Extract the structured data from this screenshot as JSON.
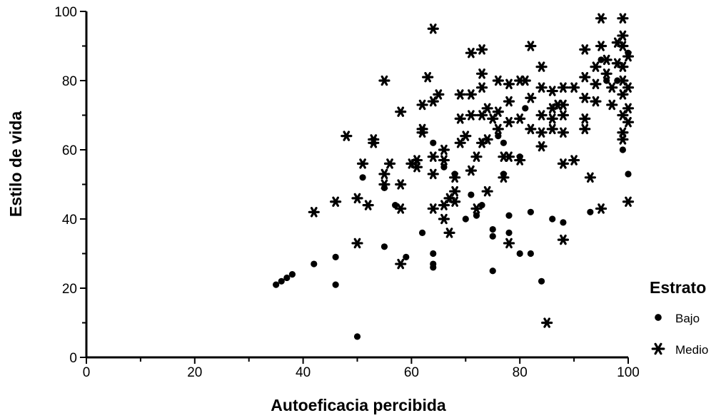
{
  "chart_data": {
    "type": "scatter",
    "title": "",
    "xlabel": "Autoeficacia percibida",
    "ylabel": "Estilo de vida",
    "xlim": [
      0,
      100
    ],
    "ylim": [
      0,
      100
    ],
    "xticks": [
      "0",
      "20",
      "40",
      "60",
      "80",
      "100"
    ],
    "yticks": [
      "0",
      "20",
      "40",
      "60",
      "80",
      "100"
    ],
    "grid": false,
    "legend": {
      "title": "Estrato",
      "placement": "right"
    },
    "colors": {
      "marker": "#000000",
      "axis": "#000000",
      "background": "#ffffff"
    },
    "series": [
      {
        "name": "Bajo",
        "marker": "circle",
        "points": [
          [
            35,
            21
          ],
          [
            36,
            22
          ],
          [
            37,
            23
          ],
          [
            38,
            24
          ],
          [
            42,
            27
          ],
          [
            46,
            29
          ],
          [
            46,
            21
          ],
          [
            50,
            6
          ],
          [
            51,
            52
          ],
          [
            55,
            32
          ],
          [
            55,
            49
          ],
          [
            57,
            44
          ],
          [
            59,
            29
          ],
          [
            62,
            36
          ],
          [
            64,
            30
          ],
          [
            64,
            27
          ],
          [
            64,
            26
          ],
          [
            64,
            62
          ],
          [
            66,
            55
          ],
          [
            68,
            53
          ],
          [
            70,
            40
          ],
          [
            71,
            47
          ],
          [
            72,
            41
          ],
          [
            73,
            44
          ],
          [
            75,
            37
          ],
          [
            75,
            35
          ],
          [
            75,
            25
          ],
          [
            76,
            64
          ],
          [
            77,
            62
          ],
          [
            77,
            53
          ],
          [
            78,
            41
          ],
          [
            78,
            36
          ],
          [
            80,
            30
          ],
          [
            80,
            58
          ],
          [
            81,
            72
          ],
          [
            82,
            30
          ],
          [
            82,
            42
          ],
          [
            84,
            22
          ],
          [
            86,
            40
          ],
          [
            88,
            39
          ],
          [
            93,
            42
          ],
          [
            95,
            86
          ],
          [
            96,
            80
          ],
          [
            98,
            80
          ],
          [
            99,
            60
          ],
          [
            100,
            53
          ],
          [
            100,
            88
          ]
        ]
      },
      {
        "name": "Medio",
        "marker": "asterisk",
        "points": [
          [
            42,
            42
          ],
          [
            46,
            45
          ],
          [
            48,
            64
          ],
          [
            50,
            33
          ],
          [
            50,
            46
          ],
          [
            51,
            56
          ],
          [
            52,
            44
          ],
          [
            53,
            62
          ],
          [
            53,
            63
          ],
          [
            55,
            80
          ],
          [
            55,
            53
          ],
          [
            55,
            50
          ],
          [
            56,
            56
          ],
          [
            58,
            71
          ],
          [
            58,
            50
          ],
          [
            58,
            43
          ],
          [
            58,
            27
          ],
          [
            60,
            56
          ],
          [
            61,
            57
          ],
          [
            61,
            55
          ],
          [
            62,
            65
          ],
          [
            62,
            66
          ],
          [
            62,
            73
          ],
          [
            63,
            81
          ],
          [
            64,
            74
          ],
          [
            64,
            95
          ],
          [
            64,
            58
          ],
          [
            64,
            53
          ],
          [
            64,
            43
          ],
          [
            65,
            76
          ],
          [
            66,
            57
          ],
          [
            66,
            60
          ],
          [
            66,
            44
          ],
          [
            66,
            40
          ],
          [
            67,
            46
          ],
          [
            67,
            36
          ],
          [
            68,
            45
          ],
          [
            68,
            52
          ],
          [
            68,
            48
          ],
          [
            69,
            62
          ],
          [
            69,
            69
          ],
          [
            69,
            76
          ],
          [
            70,
            64
          ],
          [
            71,
            88
          ],
          [
            71,
            76
          ],
          [
            71,
            70
          ],
          [
            71,
            54
          ],
          [
            72,
            58
          ],
          [
            72,
            43
          ],
          [
            73,
            89
          ],
          [
            73,
            82
          ],
          [
            73,
            78
          ],
          [
            73,
            70
          ],
          [
            73,
            62
          ],
          [
            74,
            72
          ],
          [
            74,
            63
          ],
          [
            74,
            48
          ],
          [
            75,
            69
          ],
          [
            76,
            71
          ],
          [
            76,
            80
          ],
          [
            76,
            66
          ],
          [
            77,
            58
          ],
          [
            77,
            52
          ],
          [
            78,
            79
          ],
          [
            78,
            74
          ],
          [
            78,
            68
          ],
          [
            78,
            58
          ],
          [
            78,
            33
          ],
          [
            80,
            80
          ],
          [
            80,
            69
          ],
          [
            80,
            57
          ],
          [
            81,
            80
          ],
          [
            82,
            90
          ],
          [
            82,
            75
          ],
          [
            82,
            66
          ],
          [
            84,
            84
          ],
          [
            84,
            78
          ],
          [
            84,
            70
          ],
          [
            84,
            65
          ],
          [
            84,
            61
          ],
          [
            85,
            10
          ],
          [
            86,
            77
          ],
          [
            86,
            72
          ],
          [
            86,
            69
          ],
          [
            86,
            66
          ],
          [
            87,
            73
          ],
          [
            88,
            78
          ],
          [
            88,
            73
          ],
          [
            88,
            70
          ],
          [
            88,
            65
          ],
          [
            88,
            56
          ],
          [
            88,
            34
          ],
          [
            90,
            78
          ],
          [
            90,
            57
          ],
          [
            92,
            89
          ],
          [
            92,
            81
          ],
          [
            92,
            75
          ],
          [
            92,
            69
          ],
          [
            92,
            66
          ],
          [
            93,
            52
          ],
          [
            94,
            84
          ],
          [
            94,
            79
          ],
          [
            94,
            74
          ],
          [
            95,
            98
          ],
          [
            95,
            90
          ],
          [
            95,
            43
          ],
          [
            96,
            86
          ],
          [
            96,
            82
          ],
          [
            97,
            78
          ],
          [
            97,
            73
          ],
          [
            98,
            91
          ],
          [
            98,
            85
          ],
          [
            99,
            98
          ],
          [
            99,
            93
          ],
          [
            99,
            90
          ],
          [
            99,
            84
          ],
          [
            99,
            80
          ],
          [
            99,
            76
          ],
          [
            99,
            70
          ],
          [
            99,
            65
          ],
          [
            99,
            63
          ],
          [
            100,
            87
          ],
          [
            100,
            78
          ],
          [
            100,
            72
          ],
          [
            100,
            68
          ],
          [
            100,
            45
          ]
        ]
      }
    ]
  }
}
